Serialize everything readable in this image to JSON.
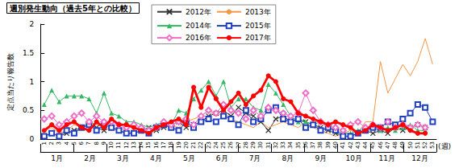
{
  "chart_data": {
    "type": "line",
    "title": "週別発生動向（過去5年との比較）",
    "xlabel": "(週)",
    "ylabel": "定点当たり報告数",
    "categories": [
      "1",
      "2",
      "3",
      "4",
      "5",
      "6",
      "7",
      "8",
      "9",
      "10",
      "11",
      "12",
      "13",
      "14",
      "15",
      "16",
      "17",
      "18",
      "19",
      "20",
      "21",
      "22",
      "23",
      "24",
      "25",
      "26",
      "27",
      "28",
      "29",
      "30",
      "31",
      "32",
      "33",
      "34",
      "35",
      "36",
      "37",
      "38",
      "39",
      "40",
      "41",
      "42",
      "43",
      "44",
      "45",
      "46",
      "47",
      "48",
      "49",
      "50",
      "51",
      "52",
      "53"
    ],
    "months": [
      "1月",
      "2月",
      "3月",
      "4月",
      "5月",
      "6月",
      "7月",
      "8月",
      "9月",
      "10月",
      "11月",
      "12月"
    ],
    "ylim": [
      0,
      2
    ],
    "yticks": [
      0,
      0.5,
      1,
      1.5,
      2
    ],
    "grid": false,
    "legend": "top",
    "series": [
      {
        "name": "2012年",
        "color": "#333333",
        "marker": "x",
        "line_style": "solid",
        "values": [
          0.05,
          0.1,
          0.05,
          0.1,
          0.15,
          0.2,
          0.25,
          0.2,
          0.15,
          0.2,
          0.15,
          0.1,
          0.1,
          0.15,
          0.2,
          0.15,
          0.2,
          0.25,
          0.3,
          0.2,
          0.25,
          0.3,
          0.4,
          0.45,
          0.5,
          0.4,
          0.55,
          0.45,
          0.4,
          0.3,
          0.15,
          0.35,
          0.4,
          0.3,
          0.35,
          0.3,
          0.25,
          0.2,
          0.15,
          0.1,
          0.05,
          0.05,
          0.1,
          0.15,
          0.1,
          0.15,
          0.1,
          0.2,
          0.15,
          0.2,
          0.25,
          0.2,
          null
        ]
      },
      {
        "name": "2013年",
        "color": "#f79646",
        "marker": "none",
        "line_style": "solid",
        "values": [
          0.15,
          0.2,
          0.1,
          0.15,
          0.25,
          0.2,
          0.3,
          0.25,
          0.2,
          0.15,
          0.2,
          0.15,
          0.1,
          0.15,
          0.1,
          0.15,
          0.2,
          0.25,
          0.2,
          0.3,
          0.35,
          0.4,
          0.5,
          0.4,
          0.45,
          0.35,
          0.3,
          0.25,
          0.2,
          0.3,
          0.2,
          0.25,
          0.3,
          0.25,
          0.2,
          0.3,
          0.2,
          0.15,
          0.1,
          0.05,
          0.1,
          0.15,
          0.1,
          0.3,
          0.3,
          1.35,
          0.8,
          1.05,
          1.3,
          1.1,
          1.35,
          1.75,
          1.3
        ]
      },
      {
        "name": "2014年",
        "color": "#33b864",
        "marker": "triangle",
        "line_style": "solid",
        "values": [
          0.6,
          0.85,
          0.65,
          0.75,
          0.75,
          0.75,
          0.7,
          0.45,
          0.8,
          0.45,
          0.4,
          0.3,
          0.3,
          0.25,
          0.2,
          0.25,
          0.3,
          0.25,
          0.5,
          0.45,
          0.7,
          0.85,
          1.0,
          0.75,
          1.0,
          0.55,
          0.7,
          0.7,
          0.55,
          0.5,
          0.95,
          0.8,
          0.6,
          0.4,
          0.3,
          0.3,
          0.25,
          0.3,
          0.2,
          0.15,
          0.1,
          0.1,
          0.15,
          0.2,
          0.2,
          0.15,
          0.2,
          0.15,
          0.2,
          0.25,
          0.15,
          0.15,
          null
        ]
      },
      {
        "name": "2015年",
        "color": "#1f3fbf",
        "marker": "square-open",
        "line_style": "solid",
        "values": [
          0.05,
          0.1,
          0.05,
          0.15,
          0.1,
          0.2,
          0.25,
          0.15,
          0.25,
          0.2,
          0.15,
          0.1,
          0.1,
          0.15,
          0.1,
          0.2,
          0.25,
          0.2,
          0.15,
          0.3,
          0.2,
          0.3,
          0.35,
          0.3,
          0.4,
          0.35,
          0.25,
          0.5,
          0.3,
          0.35,
          0.5,
          0.55,
          0.35,
          0.3,
          0.35,
          0.2,
          0.25,
          0.15,
          0.2,
          0.15,
          0.05,
          0.05,
          0.1,
          0.15,
          0.2,
          0.2,
          0.3,
          0.25,
          0.35,
          0.45,
          0.6,
          0.55,
          0.3
        ]
      },
      {
        "name": "2016年",
        "color": "#f06ec8",
        "marker": "diamond-open",
        "line_style": "solid",
        "values": [
          0.35,
          0.4,
          0.25,
          0.3,
          0.4,
          0.45,
          0.3,
          0.4,
          0.3,
          0.3,
          0.25,
          0.2,
          0.25,
          0.2,
          0.15,
          0.2,
          0.3,
          0.25,
          0.3,
          0.35,
          0.25,
          0.4,
          0.5,
          0.45,
          0.6,
          0.5,
          0.45,
          0.35,
          0.5,
          0.4,
          0.55,
          0.5,
          0.45,
          0.4,
          0.45,
          0.8,
          0.5,
          0.3,
          0.25,
          0.2,
          0.15,
          0.25,
          0.3,
          0.2,
          0.25,
          0.2,
          0.3,
          0.2,
          0.25,
          0.2,
          0.25,
          0.2,
          null
        ]
      },
      {
        "name": "2017年",
        "color": "#ff0000",
        "marker": "circle",
        "line_style": "thick",
        "values": [
          0.15,
          0.25,
          0.15,
          0.25,
          0.3,
          0.2,
          0.15,
          0.3,
          0.2,
          0.35,
          0.25,
          0.25,
          0.2,
          0.15,
          0.1,
          0.2,
          0.25,
          0.3,
          0.35,
          0.25,
          0.9,
          0.55,
          0.9,
          0.7,
          0.5,
          0.65,
          0.8,
          0.6,
          0.75,
          0.85,
          1.1,
          1.0,
          0.7,
          0.65,
          0.45,
          0.4,
          0.35,
          0.3,
          0.25,
          0.3,
          0.25,
          0.2,
          0.1,
          0.15,
          0.25,
          0.2,
          0.15,
          0.2,
          0.25,
          0.15,
          0.1,
          0.1,
          null
        ]
      }
    ]
  }
}
